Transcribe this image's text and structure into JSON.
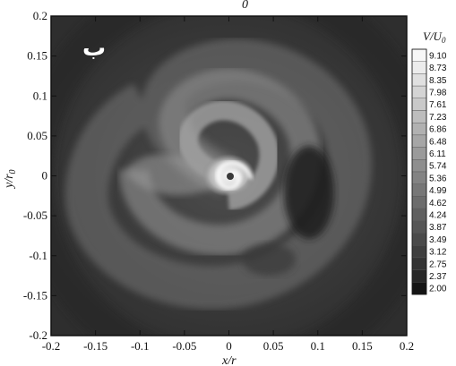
{
  "chart_data": {
    "type": "heatmap",
    "subtype": "filled-contour",
    "panel_label": "ب",
    "xlabel": "x/r",
    "ylabel": "y/r",
    "ylabel_sub": "0",
    "top_label": "0",
    "xlim": [
      -0.2,
      0.2
    ],
    "ylim": [
      -0.2,
      0.2
    ],
    "xticks": [
      "-0.2",
      "-0.15",
      "-0.1",
      "-0.05",
      "0",
      "0.05",
      "0.1",
      "0.15",
      "0.2"
    ],
    "yticks": [
      "0.2",
      "0.15",
      "0.1",
      "0.05",
      "0",
      "-0.05",
      "-0.1",
      "-0.15",
      "-0.2"
    ],
    "colorbar": {
      "title": "V/U",
      "title_sub": "0",
      "levels": [
        "9.10",
        "8.73",
        "8.35",
        "7.98",
        "7.61",
        "7.23",
        "6.86",
        "6.48",
        "6.11",
        "5.74",
        "5.36",
        "4.99",
        "4.62",
        "4.24",
        "3.87",
        "3.49",
        "3.12",
        "2.75",
        "2.37",
        "2.00"
      ],
      "colors": [
        "#f7f7f7",
        "#ececec",
        "#e0e0e0",
        "#d4d4d4",
        "#c9c9c9",
        "#bdbdbd",
        "#b1b1b1",
        "#a6a6a6",
        "#9a9a9a",
        "#8e8e8e",
        "#838383",
        "#777777",
        "#6c6c6c",
        "#606060",
        "#555555",
        "#4a4a4a",
        "#3f3f3f",
        "#343434",
        "#272727",
        "#141414"
      ]
    },
    "field": {
      "background_level": 3.3,
      "features": [
        {
          "kind": "vortex-core",
          "x": 0.0,
          "y": 0.0,
          "peak": 9.1
        },
        {
          "kind": "spiral-arm",
          "x": -0.08,
          "y": 0.03,
          "value": 5.5
        },
        {
          "kind": "low-speed-region",
          "x": 0.09,
          "y": -0.01,
          "value": 2.4
        }
      ]
    }
  }
}
